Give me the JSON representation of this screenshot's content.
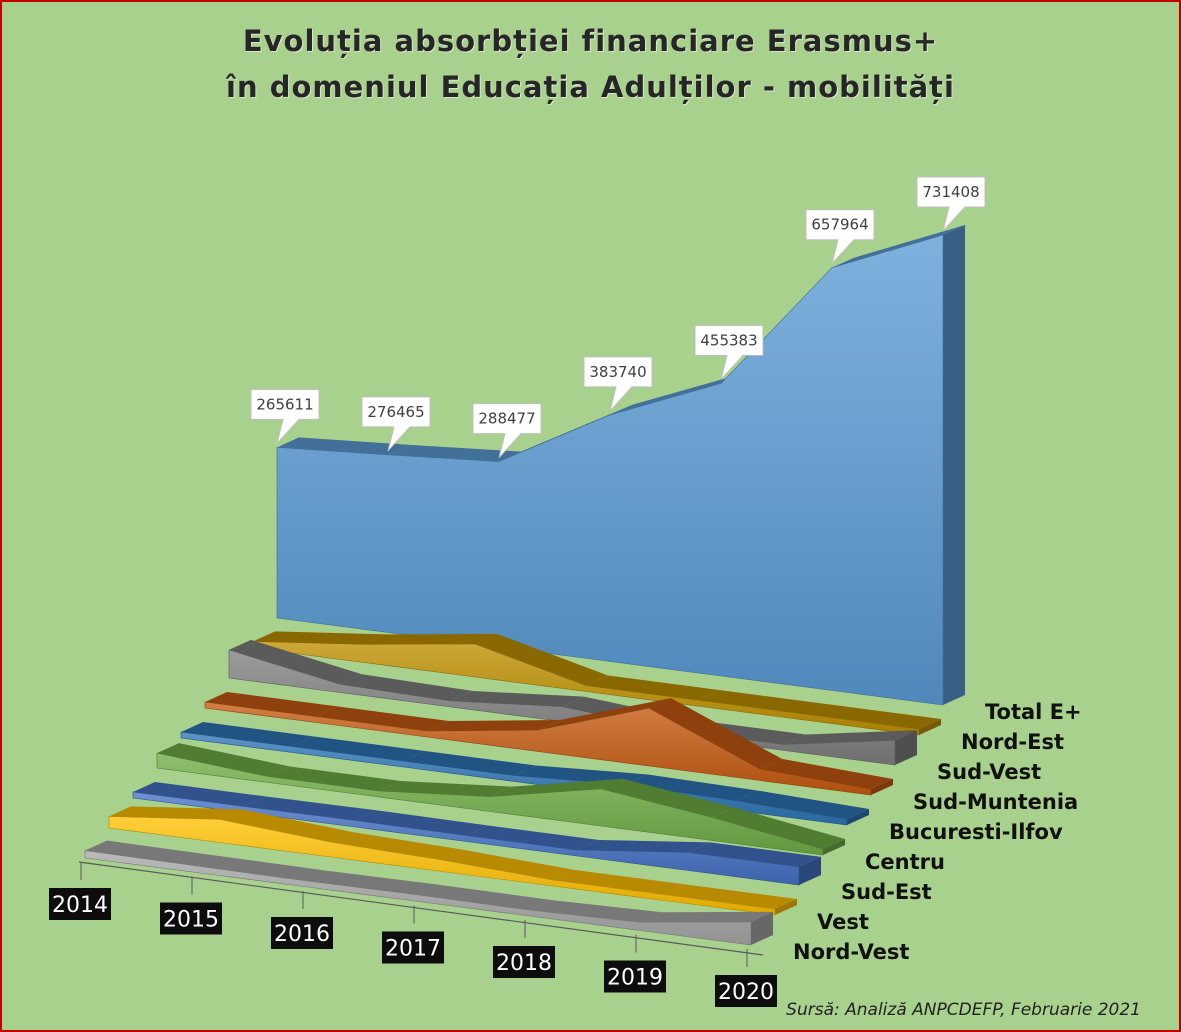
{
  "title_line1": "Evoluția absorbției financiare Erasmus+",
  "title_line2": "în domeniul Educația Adulților - mobilități",
  "source": "Sursă: Analiză ANPCDEFP, Februarie 2021",
  "chart_data": {
    "type": "area",
    "style": "3d-stacked-depth",
    "categories": [
      "2014",
      "2015",
      "2016",
      "2017",
      "2018",
      "2019",
      "2020"
    ],
    "series": [
      {
        "name": "Nord-Vest",
        "color": "#a6a6a6",
        "values": [
          9000,
          8000,
          6000,
          8000,
          2000,
          10000,
          28000
        ]
      },
      {
        "name": "Vest",
        "color": "#ffc000",
        "values": [
          14000,
          28000,
          18000,
          14000,
          0,
          2000,
          0
        ]
      },
      {
        "name": "Sud-Est",
        "color": "#4472c4",
        "values": [
          0,
          4000,
          8000,
          0,
          0,
          22000,
          22000
        ]
      },
      {
        "name": "Centru",
        "color": "#70ad47",
        "values": [
          18000,
          0,
          0,
          18000,
          45000,
          28000,
          2000
        ]
      },
      {
        "name": "Bucuresti-Ilfov",
        "color": "#2e75b6",
        "values": [
          6000,
          2000,
          4000,
          0,
          14000,
          12000,
          6000
        ]
      },
      {
        "name": "Sud-Muntenia",
        "color": "#c55a11",
        "values": [
          4000,
          0,
          0,
          26000,
          70000,
          14000,
          0
        ]
      },
      {
        "name": "Sud-Vest",
        "color": "#7f7f7f",
        "values": [
          34000,
          10000,
          0,
          18000,
          0,
          0,
          30000
        ]
      },
      {
        "name": "Nord-Est",
        "color": "#bf9000",
        "values": [
          8000,
          22000,
          40000,
          4000,
          2000,
          0,
          0
        ]
      },
      {
        "name": "Total E+",
        "color": "#5b9bd5",
        "values": [
          265611,
          276465,
          288477,
          383740,
          455383,
          657964,
          731408
        ]
      }
    ],
    "data_labels": {
      "Total E+": [
        "265611",
        "276465",
        "288477",
        "383740",
        "455383",
        "657964",
        "731408"
      ]
    },
    "ylim": [
      0,
      731408
    ],
    "grid": false,
    "legend": "none"
  }
}
